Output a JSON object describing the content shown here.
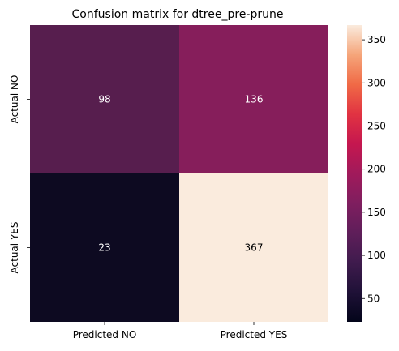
{
  "chart_data": {
    "type": "heatmap",
    "title": "Confusion matrix for dtree_pre-prune",
    "x_categories": [
      "Predicted NO",
      "Predicted YES"
    ],
    "y_categories": [
      "Actual NO",
      "Actual YES"
    ],
    "values": [
      [
        98,
        136
      ],
      [
        23,
        367
      ]
    ],
    "colorbar": {
      "colormap": "rocket",
      "vmin": 23,
      "vmax": 367,
      "ticks": [
        50,
        100,
        150,
        200,
        250,
        300,
        350
      ]
    },
    "cell_colors": [
      [
        "#571e4e",
        "#861e5b"
      ],
      [
        "#0d0a21",
        "#faebdd"
      ]
    ],
    "cell_text_colors": [
      [
        "#ffffff",
        "#ffffff"
      ],
      [
        "#ffffff",
        "#000000"
      ]
    ],
    "colormap_stops": [
      {
        "v": 0.0,
        "c": "#03051a"
      },
      {
        "v": 0.1,
        "c": "#1f1137"
      },
      {
        "v": 0.2,
        "c": "#3f1b4d"
      },
      {
        "v": 0.3,
        "c": "#5f1e5a"
      },
      {
        "v": 0.4,
        "c": "#7f1e5f"
      },
      {
        "v": 0.5,
        "c": "#a11a5b"
      },
      {
        "v": 0.6,
        "c": "#c5174f"
      },
      {
        "v": 0.7,
        "c": "#e13342"
      },
      {
        "v": 0.8,
        "c": "#f06a46"
      },
      {
        "v": 0.9,
        "c": "#f5a57a"
      },
      {
        "v": 1.0,
        "c": "#faebdd"
      }
    ]
  }
}
